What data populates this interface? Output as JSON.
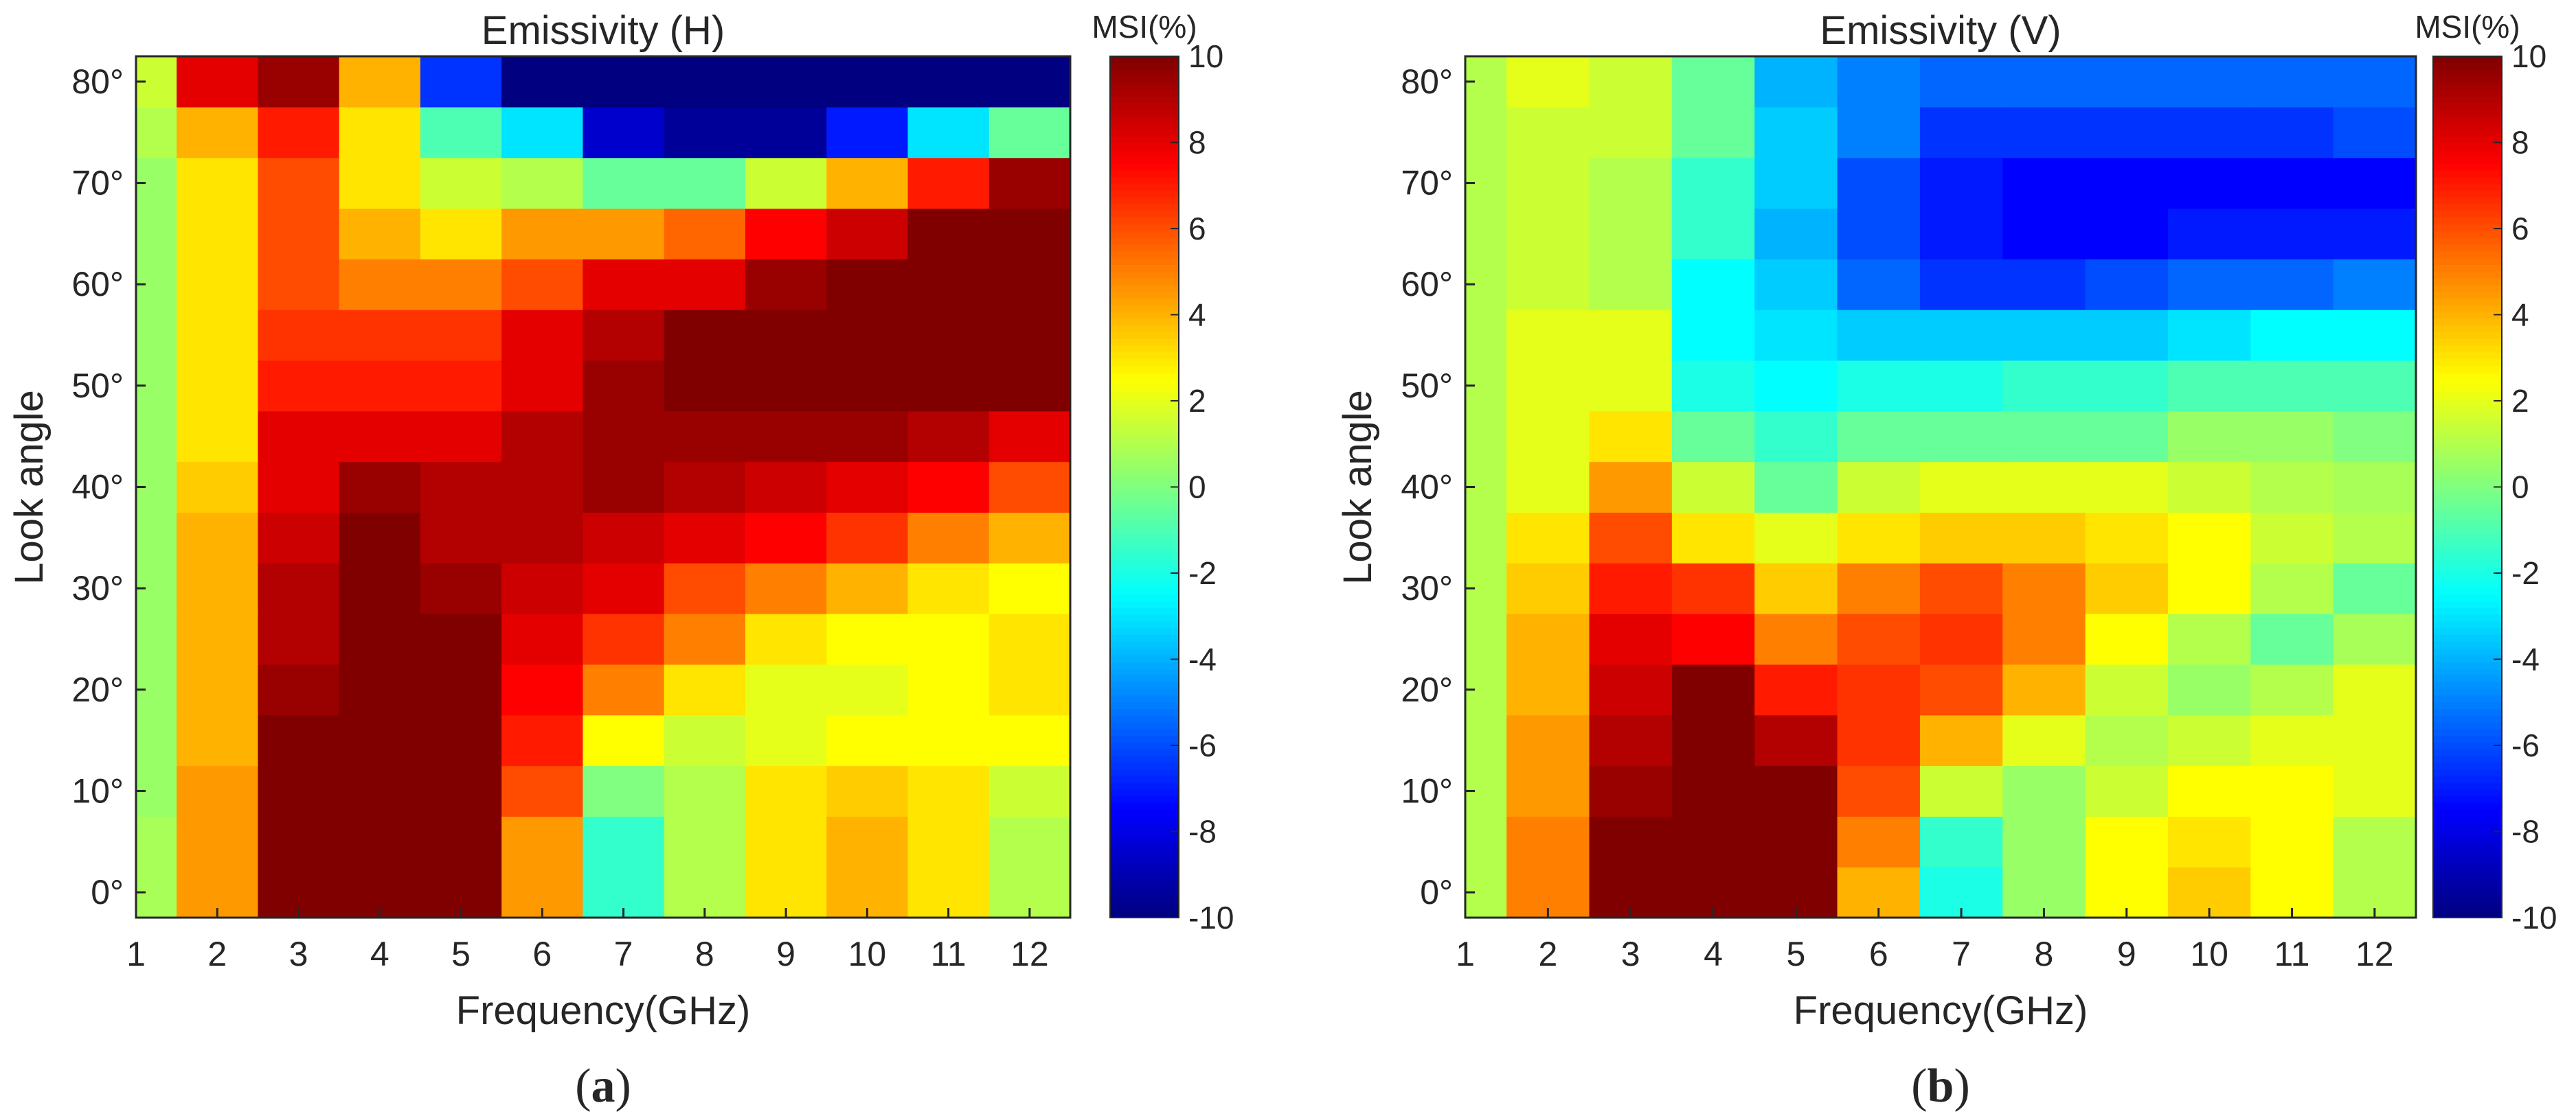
{
  "chart_data": [
    {
      "type": "heatmap",
      "title": "Emissivity (H)",
      "xlabel": "Frequency(GHz)",
      "ylabel": "Look angle",
      "x": [
        1,
        2,
        3,
        4,
        5,
        6,
        7,
        8,
        9,
        10,
        11,
        12
      ],
      "x_tick_labels": [
        "1",
        "2",
        "3",
        "4",
        "5",
        "6",
        "7",
        "8",
        "9",
        "10",
        "11",
        "12"
      ],
      "xlim": [
        1,
        12
      ],
      "y": [
        0,
        5,
        10,
        15,
        20,
        25,
        30,
        35,
        40,
        45,
        50,
        55,
        60,
        65,
        70,
        75,
        80
      ],
      "y_tick_labels": [
        "0°",
        "10°",
        "20°",
        "30°",
        "40°",
        "50°",
        "60°",
        "70°",
        "80°"
      ],
      "ylim": [
        -2.5,
        82.5
      ],
      "colorbar": {
        "title": "MSI(%)",
        "range": [
          -10,
          10
        ],
        "ticks": [
          "10",
          "8",
          "6",
          "4",
          "2",
          "0",
          "-2",
          "-4",
          "-6",
          "-8",
          "-10"
        ]
      },
      "panel_label": {
        "open": "(",
        "letter": "a",
        "close": ")"
      },
      "values": [
        [
          0.8,
          4.5,
          10,
          10,
          10,
          4.5,
          -1.5,
          1,
          3,
          4,
          3,
          1
        ],
        [
          0.8,
          4.5,
          10,
          10,
          10,
          4.5,
          -1.5,
          1,
          3,
          4,
          3,
          1
        ],
        [
          0.5,
          4.5,
          10,
          10,
          10,
          6,
          0,
          1,
          3,
          3.5,
          3,
          1.5
        ],
        [
          0.5,
          4,
          10,
          10,
          10,
          7,
          2.5,
          1.5,
          2,
          2.5,
          2.5,
          2.5
        ],
        [
          0.5,
          4,
          9.5,
          10,
          10,
          7.5,
          5,
          3,
          2,
          2,
          2.5,
          3
        ],
        [
          0.5,
          4,
          9,
          10,
          10,
          8,
          6.5,
          5,
          3,
          2.5,
          2.5,
          3
        ],
        [
          0.5,
          4,
          9,
          10,
          9.5,
          8.5,
          8,
          6,
          5,
          4,
          3,
          2.5
        ],
        [
          0.5,
          4,
          8.5,
          10,
          9,
          9,
          8.5,
          8,
          7.5,
          6.5,
          5,
          4
        ],
        [
          0.5,
          3.5,
          8,
          9.5,
          9,
          9,
          9.5,
          9,
          8.5,
          8,
          7.5,
          6
        ],
        [
          0.5,
          3,
          8,
          8,
          8,
          9,
          9.5,
          9.5,
          9.5,
          9.5,
          9,
          8
        ],
        [
          0.5,
          3,
          7,
          7,
          7,
          8,
          9.5,
          10,
          10,
          10,
          10,
          10
        ],
        [
          0.5,
          3,
          6.5,
          6.5,
          6.5,
          8,
          9,
          10,
          10,
          10,
          10,
          10
        ],
        [
          0.5,
          3,
          6,
          5,
          5,
          6,
          8,
          8,
          9.5,
          10,
          10,
          10
        ],
        [
          0.5,
          3,
          6,
          4,
          3,
          4.5,
          4.5,
          5.5,
          7.5,
          8.5,
          10,
          10
        ],
        [
          0.5,
          3,
          6,
          3,
          1.5,
          1,
          -0.5,
          -0.5,
          1.5,
          4,
          7,
          9.5
        ],
        [
          1,
          4,
          7,
          3,
          -1,
          -3,
          -8.5,
          -9.5,
          -9.5,
          -7,
          -3,
          -0.5
        ],
        [
          1.5,
          8,
          9.5,
          4,
          -6.5,
          -10,
          -10,
          -10,
          -10,
          -10,
          -10,
          -10
        ]
      ]
    },
    {
      "type": "heatmap",
      "title": "Emissivity (V)",
      "xlabel": "Frequency(GHz)",
      "ylabel": "Look angle",
      "x": [
        1,
        2,
        3,
        4,
        5,
        6,
        7,
        8,
        9,
        10,
        11,
        12
      ],
      "x_tick_labels": [
        "1",
        "2",
        "3",
        "4",
        "5",
        "6",
        "7",
        "8",
        "9",
        "10",
        "11",
        "12"
      ],
      "xlim": [
        1,
        12
      ],
      "y": [
        0,
        5,
        10,
        15,
        20,
        25,
        30,
        35,
        40,
        45,
        50,
        55,
        60,
        65,
        70,
        75,
        80
      ],
      "y_tick_labels": [
        "0°",
        "10°",
        "20°",
        "30°",
        "40°",
        "50°",
        "60°",
        "70°",
        "80°"
      ],
      "ylim": [
        -2.5,
        82.5
      ],
      "colorbar": {
        "title": "MSI(%)",
        "range": [
          -10,
          10
        ],
        "ticks": [
          "10",
          "8",
          "6",
          "4",
          "2",
          "0",
          "-2",
          "-4",
          "-6",
          "-8",
          "-10"
        ]
      },
      "panel_label": {
        "open": "(",
        "letter": "b",
        "close": ")"
      },
      "values": [
        [
          1,
          5,
          10,
          10,
          10,
          4,
          -2,
          0.5,
          2.5,
          3.5,
          2.5,
          1
        ],
        [
          1,
          5,
          10,
          10,
          10,
          5,
          -1.5,
          0.5,
          2.5,
          3,
          2.5,
          1
        ],
        [
          1,
          4.5,
          9.5,
          10,
          10,
          6,
          1.5,
          0.5,
          1.5,
          2.5,
          2.5,
          2
        ],
        [
          1,
          4.5,
          9,
          10,
          9,
          6.5,
          4,
          2,
          1,
          1.5,
          2,
          2
        ],
        [
          1,
          4,
          8.5,
          10,
          7,
          6.5,
          6,
          4,
          1.5,
          0.5,
          1,
          2
        ],
        [
          1,
          4,
          8,
          7.5,
          5,
          6,
          6.5,
          5,
          2.5,
          1,
          -0.5,
          0.8
        ],
        [
          1,
          3.5,
          7,
          6.5,
          3.5,
          5,
          6,
          5,
          3.5,
          2.5,
          1,
          -0.5
        ],
        [
          1,
          3,
          6,
          3,
          2,
          3,
          3.5,
          3.5,
          3,
          2.5,
          1.5,
          1
        ],
        [
          1,
          2,
          4.5,
          1.5,
          -0.5,
          1.5,
          2,
          2,
          2,
          1.5,
          1,
          0.8
        ],
        [
          1,
          2,
          3,
          -0.5,
          -1.5,
          -0.5,
          -0.5,
          -0.5,
          -0.5,
          0.5,
          0.5,
          0
        ],
        [
          1,
          2,
          2,
          -2,
          -2.5,
          -2,
          -2,
          -1.5,
          -1.5,
          -1,
          -1,
          -1
        ],
        [
          1,
          2,
          2,
          -2.5,
          -3,
          -3.5,
          -3.5,
          -3.5,
          -3.5,
          -3,
          -2.5,
          -2.5
        ],
        [
          1,
          1.5,
          1,
          -2.5,
          -3.5,
          -5.5,
          -6.5,
          -6.5,
          -6,
          -5.5,
          -5.5,
          -5
        ],
        [
          1,
          1.5,
          1,
          -1.5,
          -4,
          -6,
          -7,
          -7.5,
          -7.5,
          -7,
          -7,
          -7
        ],
        [
          1,
          1.5,
          1,
          -1.5,
          -3.5,
          -6,
          -7,
          -7.5,
          -7.5,
          -7.5,
          -7.5,
          -7.5
        ],
        [
          1,
          1.5,
          1.5,
          -0.5,
          -3.5,
          -5,
          -6.5,
          -6.5,
          -6.5,
          -6.5,
          -6.5,
          -6
        ],
        [
          1,
          2,
          1.5,
          -0.5,
          -4,
          -5,
          -5.5,
          -5.5,
          -5.5,
          -5.5,
          -5.5,
          -5.5
        ]
      ]
    }
  ]
}
